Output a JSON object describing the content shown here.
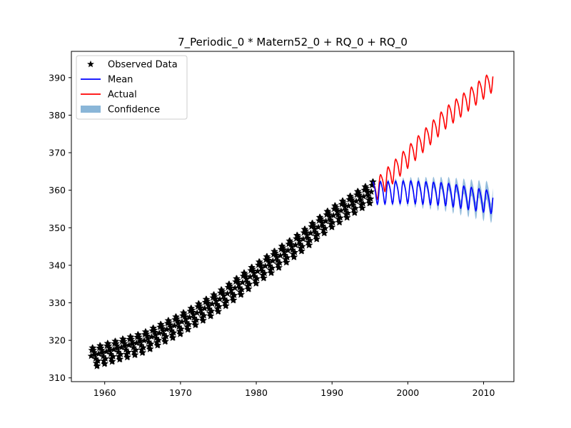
{
  "chart_data": {
    "type": "line",
    "title": "7_Periodic_0 * Matern52_0 + RQ_0 + RQ_0",
    "xlabel": "",
    "ylabel": "",
    "xlim": [
      1955.6,
      2014.0
    ],
    "ylim": [
      309.0,
      397.0
    ],
    "xticks": [
      1960,
      1970,
      1980,
      1990,
      2000,
      2010
    ],
    "yticks": [
      310,
      320,
      330,
      340,
      350,
      360,
      370,
      380,
      390
    ],
    "xtick_labels": [
      "1960",
      "1970",
      "1980",
      "1990",
      "2000",
      "2010"
    ],
    "ytick_labels": [
      "310",
      "320",
      "330",
      "340",
      "350",
      "360",
      "370",
      "380",
      "390"
    ],
    "grid": false,
    "legend_position": "upper-left",
    "legend": [
      {
        "label": "Observed Data",
        "kind": "marker",
        "color": "#000000"
      },
      {
        "label": "Mean",
        "kind": "line",
        "color": "#0000ff"
      },
      {
        "label": "Actual",
        "kind": "line",
        "color": "#ff0000"
      },
      {
        "label": "Confidence",
        "kind": "patch",
        "color": "#8ab6d8"
      }
    ],
    "series": [
      {
        "name": "Observed Data",
        "style": "star-marker",
        "color": "#000000",
        "x_start": 1958.2,
        "x_end": 1995.5,
        "step": 0.0833,
        "trend_points": [
          [
            1958.2,
            315.5
          ],
          [
            1965,
            319.5
          ],
          [
            1970,
            324.5
          ],
          [
            1975,
            330.5
          ],
          [
            1980,
            338.0
          ],
          [
            1985,
            345.0
          ],
          [
            1990,
            353.0
          ],
          [
            1995.5,
            360.0
          ]
        ],
        "seasonal_amplitude": 3.0
      },
      {
        "name": "Actual",
        "style": "line",
        "color": "#ff0000",
        "x_start": 1995.4,
        "x_end": 2011.3,
        "step": 0.0833,
        "trend_points": [
          [
            1995.4,
            359.5
          ],
          [
            2000,
            369.0
          ],
          [
            2005,
            379.5
          ],
          [
            2011.3,
            389.5
          ]
        ],
        "seasonal_amplitude": 3.2
      },
      {
        "name": "Mean",
        "style": "line",
        "color": "#0000ff",
        "x_start": 1995.4,
        "x_end": 2011.3,
        "step": 0.0833,
        "trend_points": [
          [
            1995.4,
            359.5
          ],
          [
            2000,
            359.8
          ],
          [
            2005,
            359.2
          ],
          [
            2011.3,
            357.0
          ]
        ],
        "seasonal_amplitude": 3.4
      },
      {
        "name": "Confidence",
        "style": "band",
        "color": "#8ab6d8",
        "band_halfwidth_start": 0.3,
        "band_halfwidth_end": 2.6
      }
    ]
  }
}
